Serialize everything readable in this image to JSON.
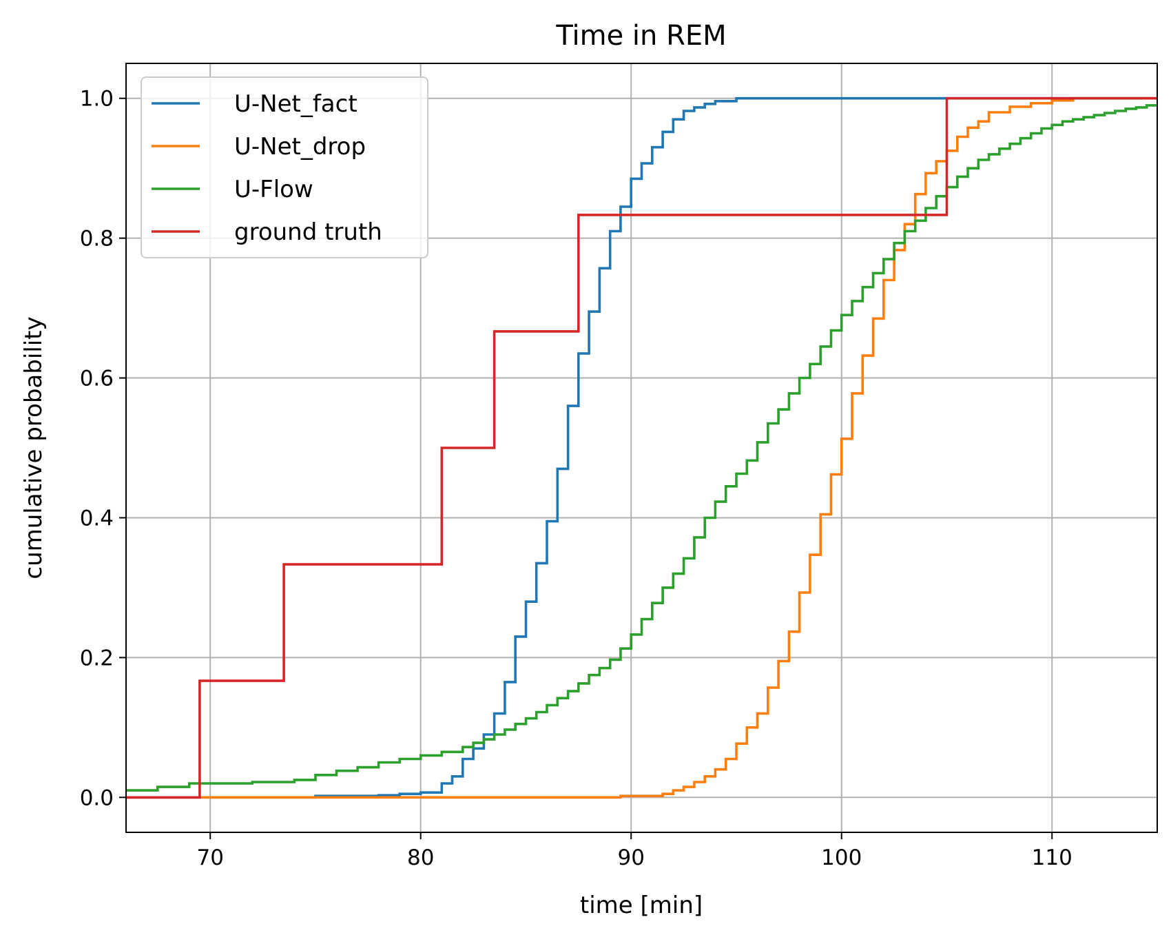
{
  "chart_data": {
    "type": "line",
    "step": "post",
    "title": "Time in REM",
    "xlabel": "time [min]",
    "ylabel": "cumulative probability",
    "xlim": [
      66,
      115
    ],
    "ylim": [
      -0.05,
      1.05
    ],
    "xticks": [
      70,
      80,
      90,
      100,
      110
    ],
    "yticks": [
      0.0,
      0.2,
      0.4,
      0.6,
      0.8,
      1.0
    ],
    "xtick_labels": [
      "70",
      "80",
      "90",
      "100",
      "110"
    ],
    "ytick_labels": [
      "0.0",
      "0.2",
      "0.4",
      "0.6",
      "0.8",
      "1.0"
    ],
    "grid": true,
    "legend_position": "upper-left",
    "series": [
      {
        "name": "U-Net_fact",
        "color": "#1f77b4",
        "x": [
          66,
          75,
          78,
          79,
          80,
          81,
          81.5,
          82,
          82.5,
          83,
          83.5,
          84,
          84.5,
          85,
          85.5,
          86,
          86.5,
          87,
          87.5,
          88,
          88.5,
          89,
          89.5,
          90,
          90.5,
          91,
          91.5,
          92,
          92.5,
          93,
          93.5,
          94,
          95,
          115
        ],
        "y": [
          0,
          0.002,
          0.003,
          0.005,
          0.007,
          0.02,
          0.03,
          0.055,
          0.07,
          0.09,
          0.12,
          0.165,
          0.23,
          0.28,
          0.335,
          0.395,
          0.47,
          0.56,
          0.635,
          0.695,
          0.757,
          0.81,
          0.845,
          0.885,
          0.907,
          0.93,
          0.952,
          0.97,
          0.982,
          0.987,
          0.992,
          0.996,
          1.0,
          1.0
        ]
      },
      {
        "name": "U-Net_drop",
        "color": "#ff7f0e",
        "x": [
          66,
          89.5,
          91.5,
          92,
          92.5,
          93,
          93.5,
          94,
          94.5,
          95,
          95.5,
          96,
          96.5,
          97,
          97.5,
          98,
          98.5,
          99,
          99.5,
          100,
          100.5,
          101,
          101.5,
          102,
          102.5,
          103,
          103.5,
          104,
          104.5,
          105,
          105.5,
          106,
          106.5,
          107,
          108,
          109,
          110,
          111,
          115
        ],
        "y": [
          0,
          0.002,
          0.005,
          0.01,
          0.015,
          0.022,
          0.03,
          0.04,
          0.055,
          0.077,
          0.1,
          0.12,
          0.157,
          0.195,
          0.237,
          0.293,
          0.347,
          0.405,
          0.462,
          0.513,
          0.578,
          0.632,
          0.685,
          0.74,
          0.783,
          0.82,
          0.863,
          0.893,
          0.91,
          0.925,
          0.945,
          0.958,
          0.967,
          0.98,
          0.988,
          0.993,
          0.997,
          1.0,
          1.0
        ]
      },
      {
        "name": "U-Flow",
        "color": "#2ca02c",
        "x": [
          66,
          67.5,
          69,
          72,
          74,
          75,
          76,
          77,
          78,
          79,
          80,
          81,
          82,
          82.5,
          83,
          83.5,
          84,
          84.5,
          85,
          85.5,
          86,
          86.5,
          87,
          87.5,
          88,
          88.5,
          89,
          89.5,
          90,
          90.5,
          91,
          91.5,
          92,
          92.5,
          93,
          93.5,
          94,
          94.5,
          95,
          95.5,
          96,
          96.5,
          97,
          97.5,
          98,
          98.5,
          99,
          99.5,
          100,
          100.5,
          101,
          101.5,
          102,
          102.5,
          103,
          103.5,
          104,
          104.5,
          105,
          105.5,
          106,
          106.5,
          107,
          107.5,
          108,
          108.5,
          109,
          109.5,
          110,
          110.5,
          111,
          111.5,
          112,
          112.5,
          113,
          113.5,
          114,
          114.5,
          115
        ],
        "y": [
          0.01,
          0.015,
          0.02,
          0.022,
          0.025,
          0.032,
          0.038,
          0.043,
          0.05,
          0.055,
          0.06,
          0.065,
          0.072,
          0.078,
          0.083,
          0.09,
          0.097,
          0.105,
          0.113,
          0.122,
          0.132,
          0.142,
          0.152,
          0.163,
          0.175,
          0.185,
          0.197,
          0.213,
          0.233,
          0.255,
          0.278,
          0.3,
          0.32,
          0.342,
          0.372,
          0.4,
          0.423,
          0.445,
          0.463,
          0.482,
          0.508,
          0.535,
          0.555,
          0.578,
          0.6,
          0.62,
          0.645,
          0.668,
          0.69,
          0.71,
          0.73,
          0.75,
          0.77,
          0.793,
          0.81,
          0.825,
          0.843,
          0.86,
          0.873,
          0.888,
          0.9,
          0.912,
          0.92,
          0.928,
          0.935,
          0.943,
          0.95,
          0.957,
          0.962,
          0.967,
          0.97,
          0.973,
          0.976,
          0.979,
          0.982,
          0.985,
          0.987,
          0.99,
          0.99
        ]
      },
      {
        "name": "ground truth",
        "color": "#d62728",
        "x": [
          66,
          69.5,
          73.5,
          81,
          83.5,
          87.5,
          105,
          115
        ],
        "y": [
          0,
          0.1667,
          0.3333,
          0.5,
          0.6667,
          0.8333,
          1.0,
          1.0
        ]
      }
    ]
  }
}
